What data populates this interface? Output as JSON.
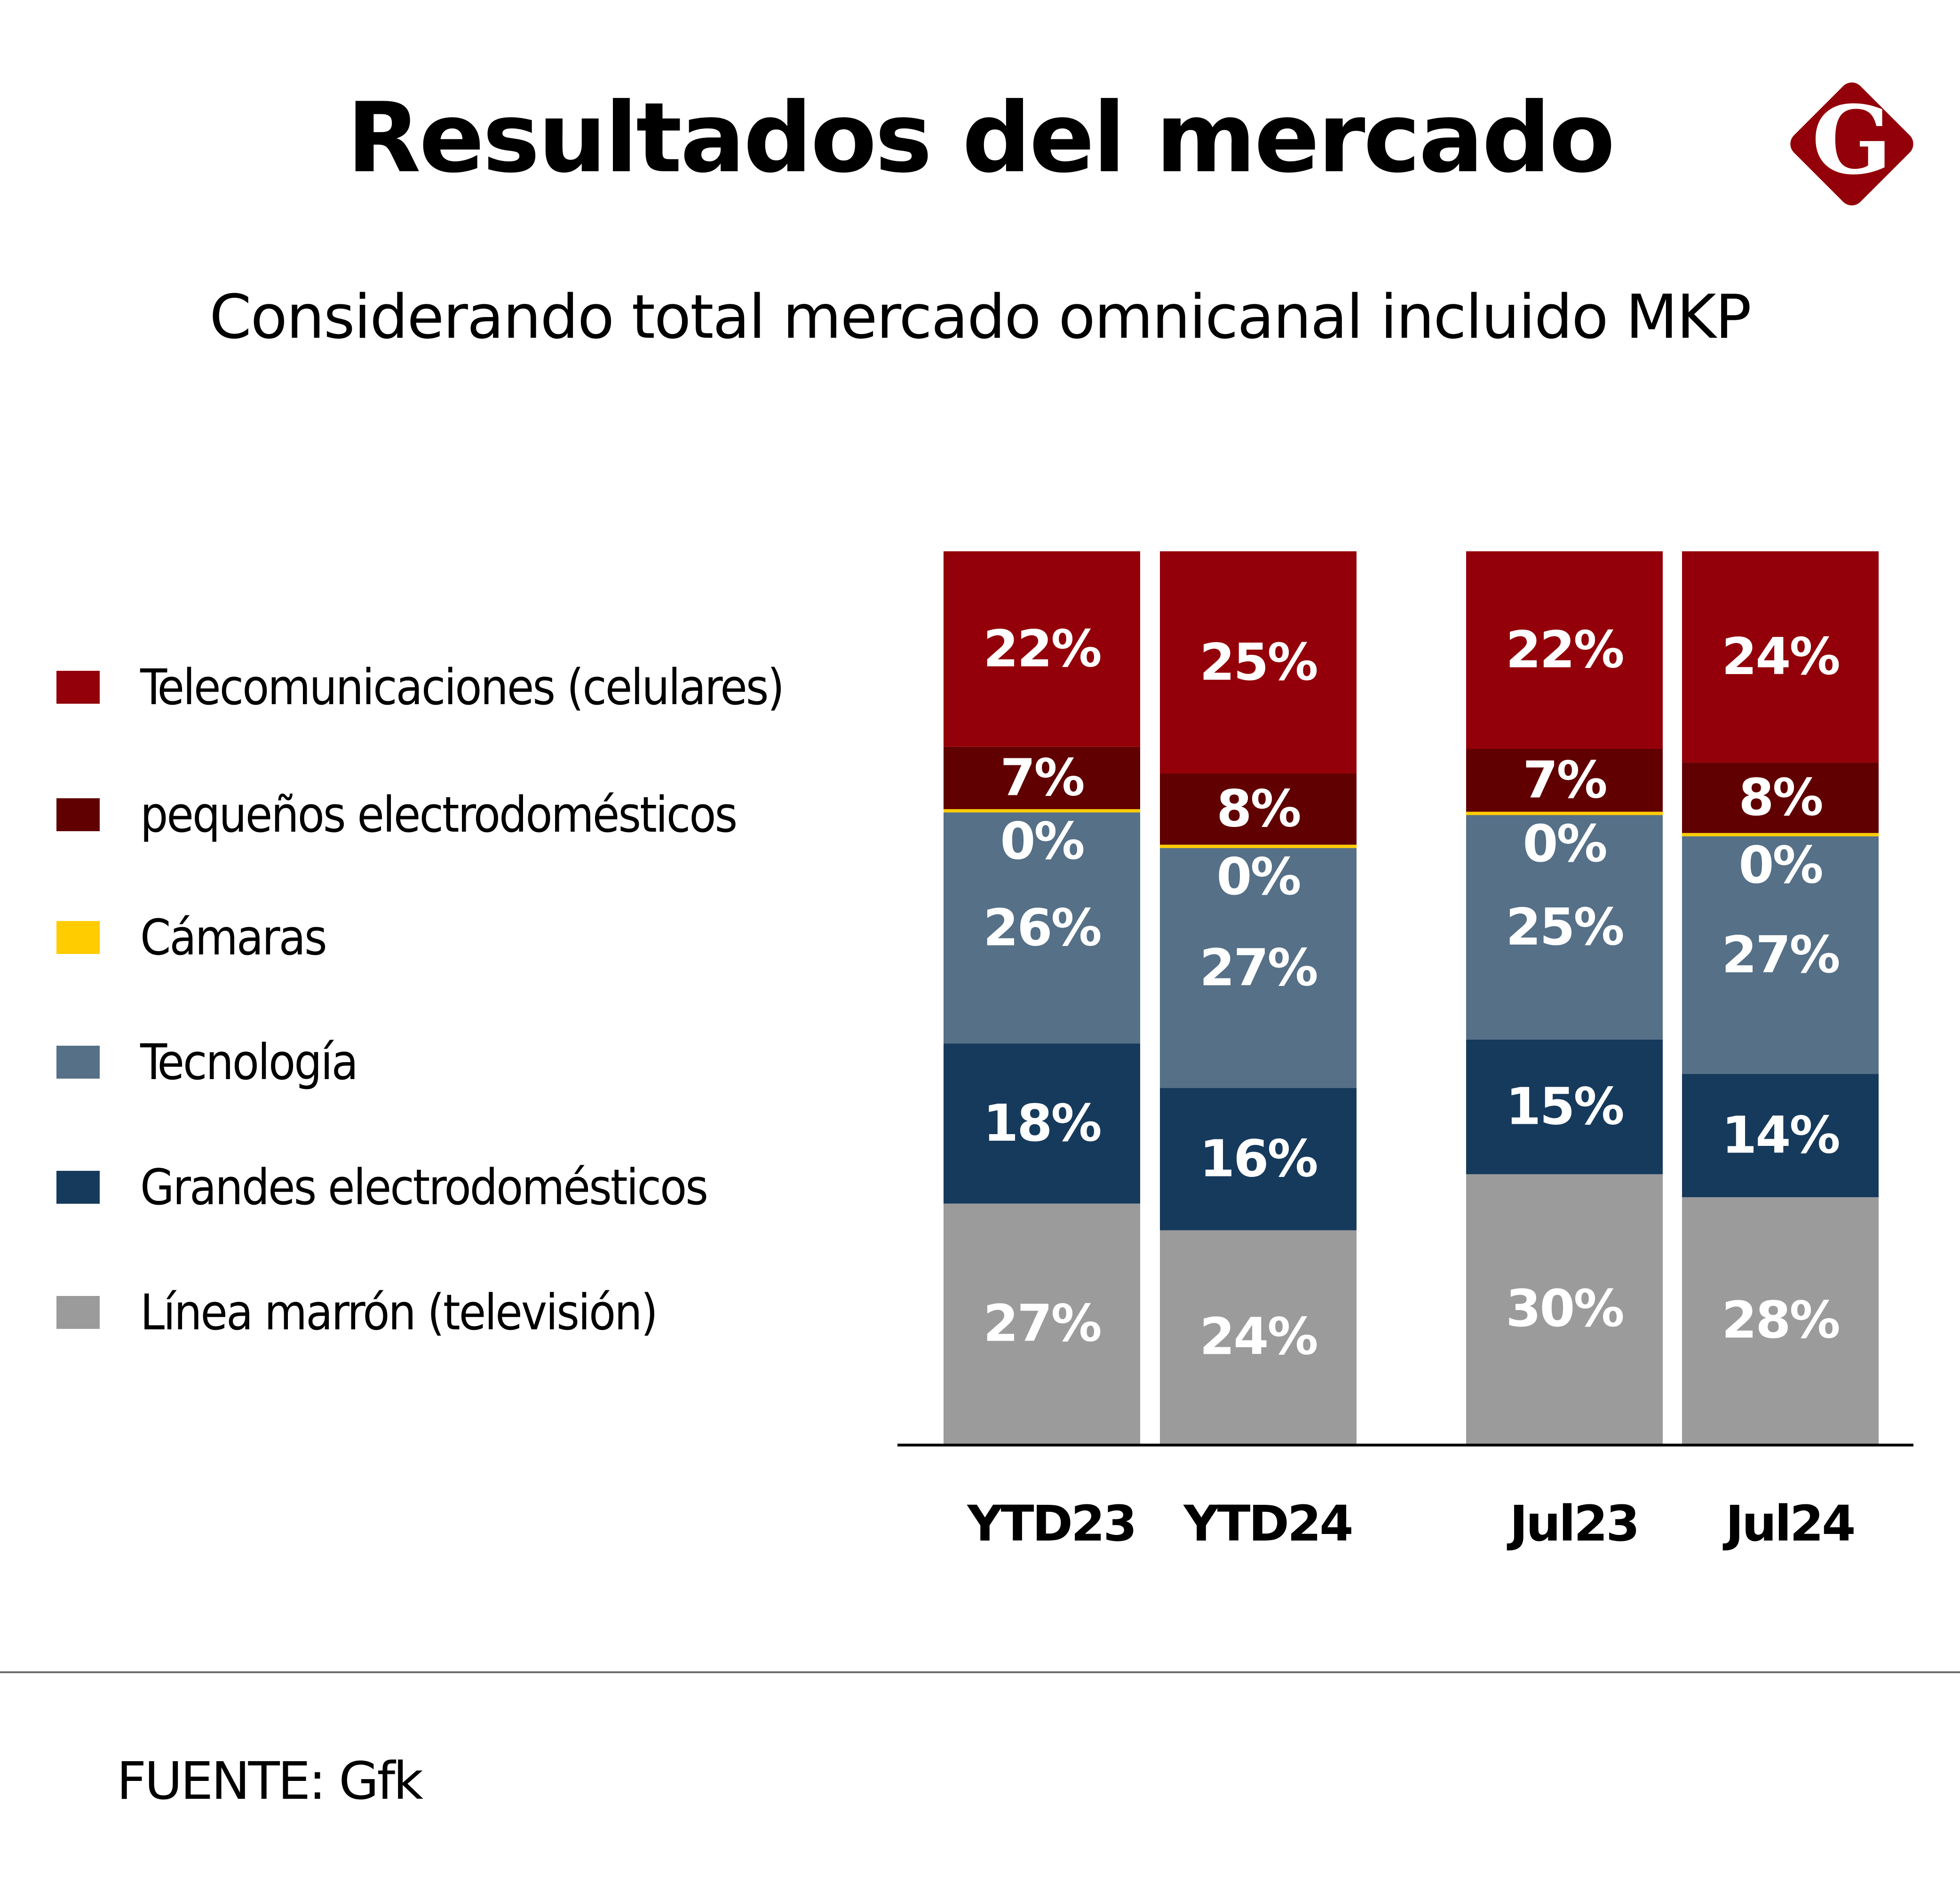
{
  "header": {
    "title": "Resultados del mercado",
    "subtitle": "Considerando total mercado omnicanal incluido MKP",
    "logo_letter": "G",
    "logo_color": "#930009"
  },
  "footer": {
    "source": "FUENTE: Gfk"
  },
  "chart_data": {
    "type": "bar",
    "stacked": true,
    "title": "Resultados del mercado",
    "subtitle": "Considerando total mercado omnicanal incluido MKP",
    "xlabel": "",
    "ylabel": "",
    "unit": "%",
    "grid": false,
    "legend_position": "left",
    "categories": [
      "YTD23",
      "YTD24",
      "Jul23",
      "Jul24"
    ],
    "groups": [
      [
        "YTD23",
        "YTD24"
      ],
      [
        "Jul23",
        "Jul24"
      ]
    ],
    "series": [
      {
        "name": "Línea marrón (televisión)",
        "color": "#9b9b9b",
        "values": [
          27,
          24,
          30,
          28
        ]
      },
      {
        "name": "Grandes electrodomésticos",
        "color": "#163a5c",
        "values": [
          18,
          16,
          15,
          14
        ]
      },
      {
        "name": "Tecnología",
        "color": "#557087",
        "values": [
          26,
          27,
          25,
          27
        ]
      },
      {
        "name": "Cámaras",
        "color": "#ffcc00",
        "values": [
          0,
          0,
          0,
          0
        ]
      },
      {
        "name": "pequeños electrodomésticos",
        "color": "#600000",
        "values": [
          7,
          8,
          7,
          8
        ]
      },
      {
        "name": "Telecomunicaciones (celulares)",
        "color": "#930009",
        "values": [
          22,
          25,
          22,
          24
        ]
      }
    ],
    "legend_order": [
      "Telecomunicaciones (celulares)",
      "pequeños electrodomésticos",
      "Cámaras",
      "Tecnología",
      "Grandes electrodomésticos",
      "Línea marrón (televisión)"
    ]
  }
}
